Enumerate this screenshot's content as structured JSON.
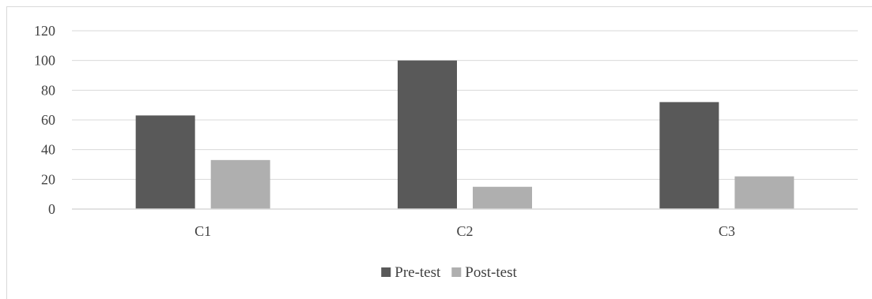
{
  "chart_data": {
    "type": "bar",
    "categories": [
      "C1",
      "C2",
      "C3"
    ],
    "series": [
      {
        "name": "Pre-test",
        "values": [
          63,
          100,
          72
        ],
        "color": "#595959"
      },
      {
        "name": "Post-test",
        "values": [
          33,
          15,
          22
        ],
        "color": "#afafaf"
      }
    ],
    "ylim": [
      0,
      120
    ],
    "yticks": [
      "0",
      "20",
      "40",
      "60",
      "80",
      "100",
      "120"
    ],
    "grid": true,
    "gridline_color": "#d9d9d9",
    "axis_color": "#d9d9d9",
    "legend_placement": "bottom"
  }
}
